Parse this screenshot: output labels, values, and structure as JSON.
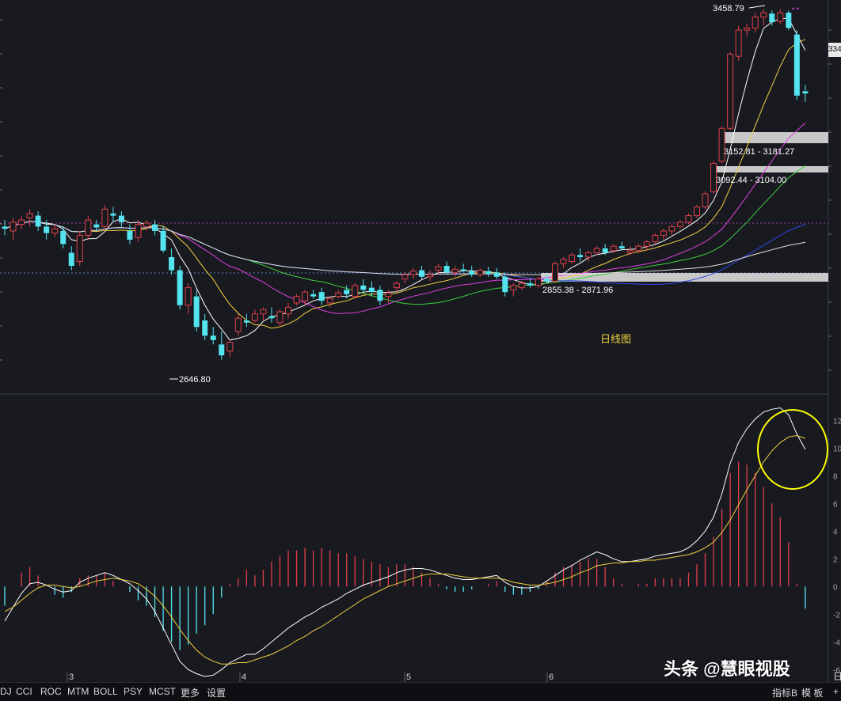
{
  "chart_data": [
    {
      "type": "candlestick",
      "ylim": [
        2600,
        3470
      ],
      "price_line": 2930,
      "tick_labels": [
        "3",
        "4",
        "5",
        "6"
      ],
      "annotations": {
        "high": "3458.79",
        "low": "2646.80",
        "zone1": "3152.81 - 3181.27",
        "zone2": "3092.44 - 3104.00",
        "zone3": "2855.38 - 2871.96",
        "center_label": "日线图",
        "right_price": "334"
      },
      "candles": [
        [
          2960,
          2975,
          2940,
          2955
        ],
        [
          2950,
          2980,
          2930,
          2970
        ],
        [
          2965,
          2985,
          2955,
          2975
        ],
        [
          2980,
          3000,
          2960,
          2990
        ],
        [
          2985,
          2995,
          2950,
          2960
        ],
        [
          2960,
          2975,
          2930,
          2945
        ],
        [
          2945,
          2965,
          2935,
          2955
        ],
        [
          2950,
          2960,
          2910,
          2920
        ],
        [
          2900,
          2915,
          2860,
          2870
        ],
        [
          2880,
          2950,
          2870,
          2940
        ],
        [
          2940,
          2985,
          2930,
          2975
        ],
        [
          2965,
          2975,
          2950,
          2958
        ],
        [
          2960,
          3010,
          2955,
          3000
        ],
        [
          2990,
          3005,
          2970,
          2985
        ],
        [
          2985,
          2995,
          2960,
          2970
        ],
        [
          2950,
          2965,
          2920,
          2930
        ],
        [
          2935,
          2975,
          2925,
          2965
        ],
        [
          2960,
          2975,
          2950,
          2968
        ],
        [
          2965,
          2975,
          2940,
          2950
        ],
        [
          2950,
          2960,
          2900,
          2905
        ],
        [
          2890,
          2910,
          2850,
          2860
        ],
        [
          2860,
          2870,
          2770,
          2780
        ],
        [
          2780,
          2830,
          2760,
          2820
        ],
        [
          2800,
          2815,
          2720,
          2730
        ],
        [
          2745,
          2760,
          2700,
          2710
        ],
        [
          2710,
          2730,
          2690,
          2700
        ],
        [
          2690,
          2720,
          2655,
          2665
        ],
        [
          2675,
          2700,
          2660,
          2695
        ],
        [
          2720,
          2760,
          2710,
          2750
        ],
        [
          2745,
          2760,
          2730,
          2740
        ],
        [
          2745,
          2770,
          2740,
          2760
        ],
        [
          2760,
          2775,
          2745,
          2770
        ],
        [
          2755,
          2775,
          2740,
          2750
        ],
        [
          2740,
          2770,
          2730,
          2765
        ],
        [
          2760,
          2785,
          2750,
          2775
        ],
        [
          2785,
          2805,
          2780,
          2800
        ],
        [
          2790,
          2815,
          2780,
          2810
        ],
        [
          2805,
          2815,
          2795,
          2800
        ],
        [
          2810,
          2820,
          2780,
          2790
        ],
        [
          2785,
          2800,
          2775,
          2795
        ],
        [
          2800,
          2815,
          2795,
          2808
        ],
        [
          2815,
          2825,
          2795,
          2805
        ],
        [
          2800,
          2830,
          2795,
          2825
        ],
        [
          2825,
          2840,
          2810,
          2815
        ],
        [
          2820,
          2835,
          2800,
          2810
        ],
        [
          2815,
          2825,
          2780,
          2790
        ],
        [
          2800,
          2815,
          2785,
          2808
        ],
        [
          2820,
          2835,
          2810,
          2830
        ],
        [
          2840,
          2855,
          2830,
          2850
        ],
        [
          2850,
          2865,
          2840,
          2858
        ],
        [
          2860,
          2870,
          2840,
          2845
        ],
        [
          2845,
          2860,
          2835,
          2850
        ],
        [
          2860,
          2875,
          2850,
          2868
        ],
        [
          2870,
          2880,
          2850,
          2855
        ],
        [
          2855,
          2870,
          2845,
          2862
        ],
        [
          2862,
          2875,
          2855,
          2858
        ],
        [
          2858,
          2870,
          2845,
          2850
        ],
        [
          2850,
          2865,
          2845,
          2860
        ],
        [
          2858,
          2868,
          2845,
          2852
        ],
        [
          2855,
          2865,
          2840,
          2845
        ],
        [
          2845,
          2855,
          2800,
          2810
        ],
        [
          2815,
          2830,
          2800,
          2825
        ],
        [
          2820,
          2835,
          2815,
          2830
        ],
        [
          2830,
          2840,
          2820,
          2825
        ],
        [
          2825,
          2845,
          2820,
          2840
        ],
        [
          2840,
          2850,
          2830,
          2835
        ],
        [
          2835,
          2880,
          2830,
          2875
        ],
        [
          2875,
          2890,
          2865,
          2885
        ],
        [
          2880,
          2900,
          2875,
          2895
        ],
        [
          2895,
          2910,
          2880,
          2890
        ],
        [
          2890,
          2905,
          2880,
          2900
        ],
        [
          2900,
          2915,
          2895,
          2910
        ],
        [
          2910,
          2920,
          2895,
          2900
        ],
        [
          2905,
          2920,
          2900,
          2915
        ],
        [
          2915,
          2925,
          2905,
          2910
        ],
        [
          2900,
          2915,
          2895,
          2905
        ],
        [
          2905,
          2920,
          2900,
          2915
        ],
        [
          2915,
          2930,
          2905,
          2925
        ],
        [
          2925,
          2945,
          2920,
          2940
        ],
        [
          2940,
          2955,
          2930,
          2950
        ],
        [
          2950,
          2965,
          2940,
          2960
        ],
        [
          2960,
          2975,
          2955,
          2970
        ],
        [
          2970,
          2990,
          2965,
          2985
        ],
        [
          2985,
          3010,
          2980,
          3005
        ],
        [
          3005,
          3040,
          3000,
          3035
        ],
        [
          3040,
          3110,
          3035,
          3105
        ],
        [
          3110,
          3190,
          3105,
          3185
        ],
        [
          3185,
          3360,
          3180,
          3355
        ],
        [
          3350,
          3420,
          3340,
          3410
        ],
        [
          3410,
          3425,
          3395,
          3415
        ],
        [
          3415,
          3450,
          3405,
          3440
        ],
        [
          3440,
          3458,
          3420,
          3450
        ],
        [
          3448,
          3455,
          3420,
          3428
        ],
        [
          3430,
          3458,
          3425,
          3450
        ],
        [
          3450,
          3455,
          3410,
          3415
        ],
        [
          3400,
          3410,
          3250,
          3260
        ],
        [
          3270,
          3285,
          3245,
          3265
        ]
      ]
    },
    {
      "type": "macd",
      "ylim": [
        -6.5,
        13.5
      ],
      "axis_ticks": [
        "12",
        "10",
        "8",
        "6",
        "4",
        "2",
        "0",
        "-2",
        "-4",
        "-6"
      ],
      "dif": [
        -2.5,
        -1.5,
        -0.5,
        0.2,
        0.3,
        0.1,
        -0.2,
        -0.4,
        -0.3,
        0.3,
        0.6,
        0.8,
        1.0,
        0.8,
        0.5,
        0.2,
        -0.3,
        -0.9,
        -1.8,
        -3.0,
        -4.2,
        -5.4,
        -6.0,
        -6.3,
        -6.5,
        -6.4,
        -6.0,
        -5.5,
        -5.2,
        -4.9,
        -4.9,
        -4.5,
        -4.0,
        -3.5,
        -3.0,
        -2.6,
        -2.2,
        -1.9,
        -1.5,
        -1.2,
        -0.9,
        -0.5,
        -0.2,
        0.1,
        0.3,
        0.5,
        0.7,
        1.0,
        1.2,
        1.3,
        1.3,
        1.2,
        1.0,
        0.8,
        0.6,
        0.5,
        0.5,
        0.6,
        0.7,
        0.8,
        0.3,
        0.0,
        -0.1,
        -0.1,
        0.0,
        0.4,
        0.8,
        1.2,
        1.5,
        1.9,
        2.2,
        2.5,
        2.3,
        2.0,
        1.8,
        1.8,
        1.9,
        2.0,
        2.2,
        2.3,
        2.4,
        2.5,
        2.8,
        3.3,
        4.0,
        5.0,
        6.7,
        8.9,
        10.4,
        11.4,
        12.1,
        12.6,
        12.8,
        12.9,
        12.4,
        11.0,
        9.9
      ],
      "dea": [
        -1.8,
        -1.5,
        -1.0,
        -0.5,
        -0.1,
        0.1,
        0.1,
        0.0,
        -0.1,
        0.0,
        0.2,
        0.4,
        0.5,
        0.6,
        0.5,
        0.4,
        0.2,
        -0.2,
        -0.7,
        -1.4,
        -2.2,
        -3.1,
        -3.9,
        -4.6,
        -5.1,
        -5.4,
        -5.6,
        -5.6,
        -5.5,
        -5.5,
        -5.3,
        -5.1,
        -4.9,
        -4.6,
        -4.3,
        -3.9,
        -3.6,
        -3.2,
        -2.9,
        -2.5,
        -2.1,
        -1.7,
        -1.3,
        -0.9,
        -0.6,
        -0.3,
        0.0,
        0.2,
        0.4,
        0.6,
        0.8,
        0.9,
        0.9,
        0.9,
        0.8,
        0.7,
        0.6,
        0.6,
        0.6,
        0.6,
        0.5,
        0.3,
        0.2,
        0.1,
        0.1,
        0.2,
        0.3,
        0.5,
        0.7,
        1.0,
        1.2,
        1.5,
        1.6,
        1.7,
        1.7,
        1.8,
        1.8,
        1.9,
        1.9,
        2.0,
        2.1,
        2.2,
        2.3,
        2.5,
        2.8,
        3.2,
        3.9,
        4.8,
        5.9,
        7.0,
        8.0,
        9.0,
        9.8,
        10.4,
        10.8,
        10.9,
        10.7
      ]
    }
  ],
  "indicator_tabs": [
    "DJ",
    "CCI",
    "ROC",
    "MTM",
    "BOLL",
    "PSY",
    "MCST",
    "更多",
    "设置"
  ],
  "right_tabs": [
    "指标B",
    "模 板",
    "+"
  ],
  "date_label": "日",
  "watermark": "头条 @慧眼视股",
  "colors": {
    "up": "#e0404a",
    "down": "#54e4f0",
    "ma5": "#ffffff",
    "ma10": "#f0d040",
    "ma20": "#e040e0",
    "ma30": "#40d040",
    "ma60": "#3048e8",
    "ma120": "#e0e0e0",
    "dif": "#ffffff",
    "dea": "#f0d040",
    "zone": "#c8c8c8",
    "highlight_circle": "#ffff00"
  }
}
